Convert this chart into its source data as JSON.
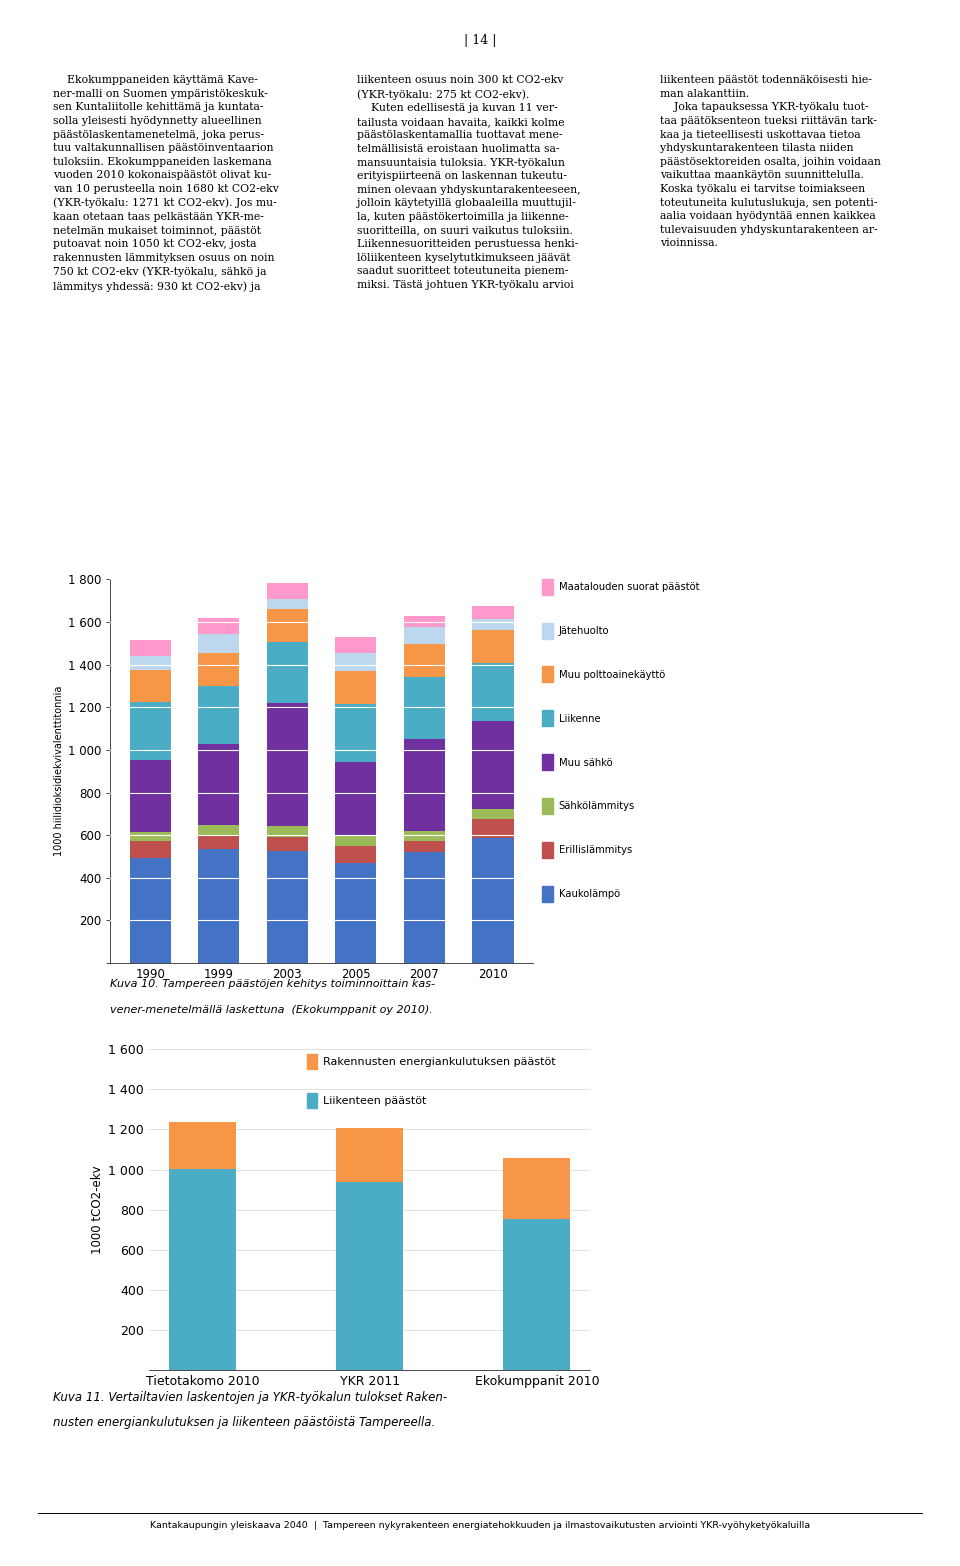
{
  "chart1": {
    "years": [
      "1990",
      "1999",
      "2003",
      "2005",
      "2007",
      "2010"
    ],
    "categories": [
      "Kaukolämpö",
      "Erillislämmitys",
      "Sähkölämmitys",
      "Muu sähkö",
      "Liikenne",
      "Muu polttoainekäyttö",
      "Jätehuolto",
      "Maatalouden suorat päästöt"
    ],
    "colors": [
      "#4472C4",
      "#C0504D",
      "#9BBB59",
      "#7030A0",
      "#4BACC6",
      "#F79646",
      "#BDD7EE",
      "#FF99CC"
    ],
    "data": {
      "Kaukolämpö": [
        495,
        535,
        525,
        470,
        520,
        585
      ],
      "Erillislämmitys": [
        80,
        60,
        65,
        80,
        55,
        90
      ],
      "Sähkölämmitys": [
        40,
        55,
        55,
        50,
        45,
        50
      ],
      "Muu sähkö": [
        340,
        380,
        575,
        345,
        430,
        410
      ],
      "Liikenne": [
        270,
        270,
        285,
        270,
        290,
        275
      ],
      "Muu polttoainekäyttö": [
        150,
        155,
        155,
        155,
        155,
        155
      ],
      "Jätehuolto": [
        65,
        90,
        50,
        85,
        80,
        50
      ],
      "Maatalouden suorat päästöt": [
        75,
        75,
        75,
        75,
        55,
        60
      ]
    },
    "ylabel": "1000 hiilidioksidiekvivalenttitonnia",
    "ylim": [
      0,
      1800
    ],
    "yticks": [
      0,
      200,
      400,
      600,
      800,
      1000,
      1200,
      1400,
      1600,
      1800
    ],
    "caption_line1": "Kuva 10. Tampereen päästöjen kehitys toiminnoittain kas-",
    "caption_line2": "vener-menetelmällä laskettuna  (Ekokumppanit oy 2010)."
  },
  "chart2": {
    "categories": [
      "Tietotakomo 2010",
      "YKR 2011",
      "Ekokumppanit 2010"
    ],
    "series": [
      "Rakennusten energiankulutuksen päästöt",
      "Liikenteen päästöt"
    ],
    "colors": [
      "#F79646",
      "#4BACC6"
    ],
    "data": {
      "Liikenteen päästöt": [
        1005,
        940,
        755
      ],
      "Rakennusten energiankulutuksen päästöt": [
        230,
        265,
        305
      ]
    },
    "ylabel": "1000 tCO2-ekv",
    "ylim": [
      0,
      1600
    ],
    "yticks": [
      0,
      200,
      400,
      600,
      800,
      1000,
      1200,
      1400,
      1600
    ],
    "caption_line1": "Kuva 11. Vertailtavien laskentojen ja YKR-työkalun tulokset Raken-",
    "caption_line2": "nusten energiankulutuksen ja liikenteen päästöistä Tampereella."
  },
  "page_number": "| 14 |",
  "footer_text": "Kantakaupungin yleiskaava 2040  |  Tampereen nykyrakenteen energiatehokkuuden ja ilmastovaikutusten arviointi YKR-vyöhyketyökaluilla",
  "background_color": "#FFFFFF",
  "text_color": "#000000"
}
